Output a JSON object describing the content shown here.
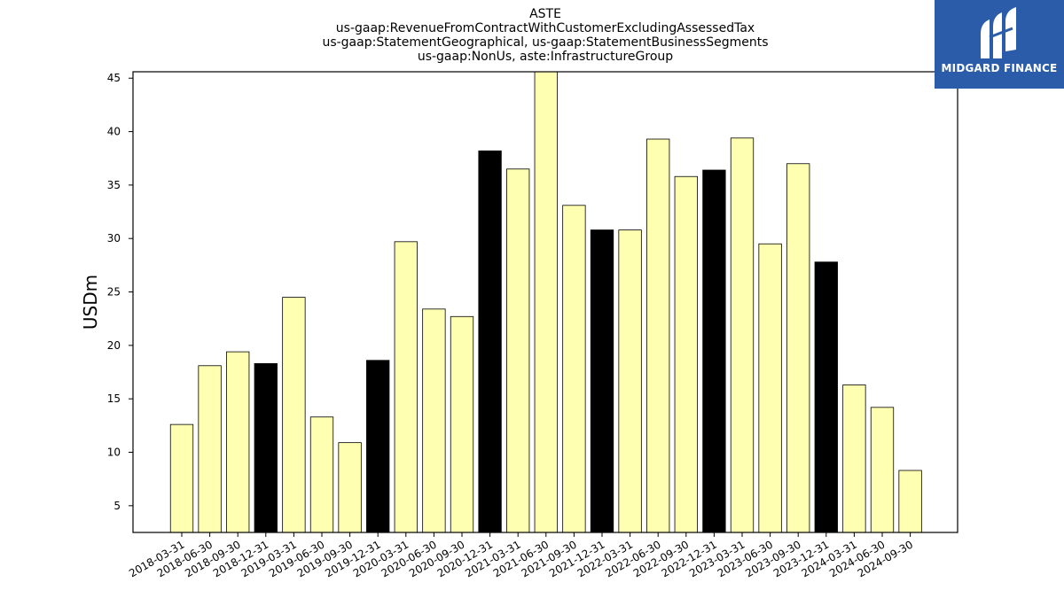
{
  "chart_data": {
    "type": "bar",
    "title_lines": [
      "ASTE",
      "us-gaap:RevenueFromContractWithCustomerExcludingAssessedTax",
      "us-gaap:StatementGeographical, us-gaap:StatementBusinessSegments",
      "us-gaap:NonUs, aste:InfrastructureGroup"
    ],
    "ylabel": "USDm",
    "xlabel": "",
    "ylim": [
      2.5,
      45.6
    ],
    "yticks": [
      5,
      10,
      15,
      20,
      25,
      30,
      35,
      40,
      45
    ],
    "categories": [
      "2018-03-31",
      "2018-06-30",
      "2018-09-30",
      "2018-12-31",
      "2019-03-31",
      "2019-06-30",
      "2019-09-30",
      "2019-12-31",
      "2020-03-31",
      "2020-06-30",
      "2020-09-30",
      "2020-12-31",
      "2021-03-31",
      "2021-06-30",
      "2021-09-30",
      "2021-12-31",
      "2022-03-31",
      "2022-06-30",
      "2022-09-30",
      "2022-12-31",
      "2023-03-31",
      "2023-06-30",
      "2023-09-30",
      "2023-12-31",
      "2024-03-31",
      "2024-06-30",
      "2024-09-30"
    ],
    "values": [
      12.6,
      18.1,
      19.4,
      18.3,
      24.5,
      13.3,
      10.9,
      18.6,
      29.7,
      23.4,
      22.7,
      38.2,
      36.5,
      45.6,
      33.1,
      30.8,
      30.8,
      39.3,
      35.8,
      36.4,
      39.4,
      29.5,
      37.0,
      27.8,
      16.3,
      14.2,
      8.3
    ],
    "colors": {
      "quarter": "#ffffb2",
      "year_end": "#000000",
      "edge": "#000000"
    },
    "grid": false
  },
  "logo": {
    "text": "MIDGARD FINANCE",
    "background": "#2a5caa"
  }
}
